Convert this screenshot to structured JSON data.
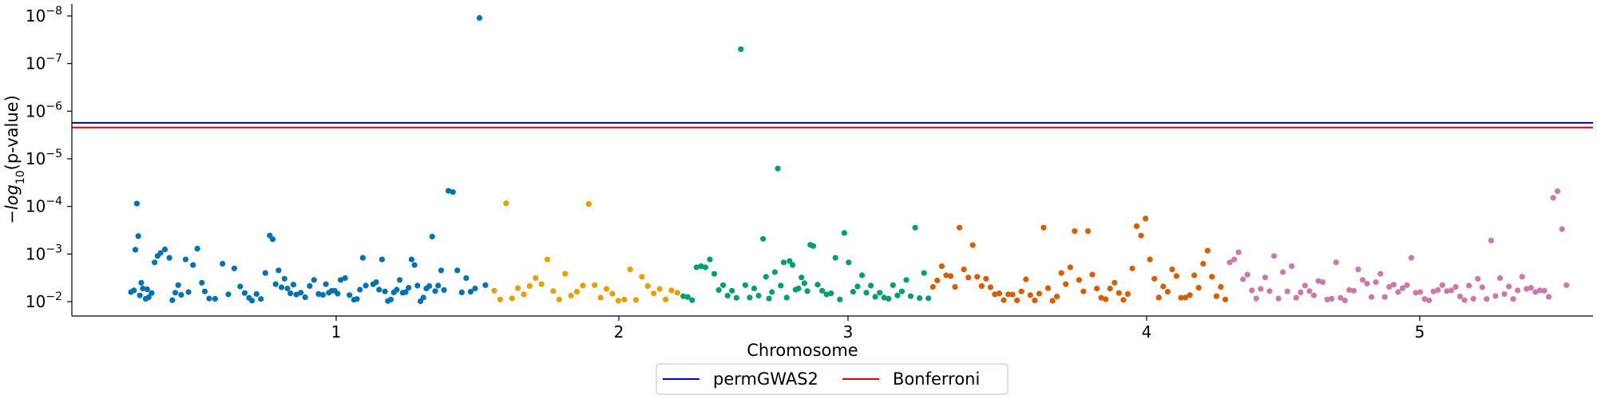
{
  "chart_data": {
    "type": "scatter",
    "xlabel": "Chromosome",
    "ylabel": "−log10(p-value)",
    "y_scale": "log (inverted)",
    "y_ticks": [
      {
        "base": "10",
        "exp": "−8",
        "value": 1e-08
      },
      {
        "base": "10",
        "exp": "−7",
        "value": 1e-07
      },
      {
        "base": "10",
        "exp": "−6",
        "value": 1e-06
      },
      {
        "base": "10",
        "exp": "−5",
        "value": 1e-05
      },
      {
        "base": "10",
        "exp": "−4",
        "value": 0.0001
      },
      {
        "base": "10",
        "exp": "−3",
        "value": 0.001
      },
      {
        "base": "10",
        "exp": "−2",
        "value": 0.01
      }
    ],
    "x_ticks": [
      "1",
      "2",
      "3",
      "4",
      "5"
    ],
    "thresholds": [
      {
        "name": "permGWAS2",
        "value": 1.75e-06,
        "color": "#0000cc"
      },
      {
        "name": "Bonferroni",
        "value": 2.2e-06,
        "color": "#dd0000"
      }
    ],
    "legend": {
      "placement": "bottom-center",
      "entries": [
        "permGWAS2",
        "Bonferroni"
      ]
    },
    "grid": false,
    "series": [
      {
        "chromosome": "1",
        "color": "#0072b2",
        "x": [
          0.4,
          0.42,
          0.43,
          0.44,
          0.45,
          0.46,
          0.47,
          0.48,
          0.5,
          0.51,
          0.52,
          0.54,
          0.56,
          0.58,
          0.6,
          0.63,
          0.66,
          0.68,
          0.7,
          0.72,
          0.74,
          0.77,
          0.79,
          0.82,
          0.85,
          0.88,
          0.9,
          0.93,
          0.97,
          1.02,
          1.06,
          1.1,
          1.14,
          1.17,
          1.2,
          1.22,
          1.25,
          1.28,
          1.31,
          1.34,
          1.36,
          1.38,
          1.4,
          1.42,
          1.44,
          1.46,
          1.48,
          1.5,
          1.52,
          1.55,
          1.58,
          1.61,
          1.64,
          1.67,
          1.7,
          1.72,
          1.74,
          1.76,
          1.78,
          1.8,
          1.82,
          1.85,
          1.88,
          1.91,
          1.93,
          1.95,
          1.97,
          1.99
        ],
        "y": [
          0.0063,
          0.0058,
          0.00081,
          8.7e-05,
          0.00042,
          0.0074,
          0.004,
          0.0053,
          0.0087,
          0.0055,
          0.0081,
          0.0066,
          0.0015,
          0.0011,
          0.00095,
          0.0008,
          0.0012,
          0.0093,
          0.0065,
          0.0045,
          0.0072,
          0.0013,
          0.0063,
          0.0017,
          0.00077,
          0.004,
          0.0061,
          0.0086,
          0.0087,
          0.0016,
          0.007,
          0.002,
          0.0048,
          0.0066,
          0.0083,
          0.0095,
          0.0069,
          0.0088,
          0.0025,
          0.00041,
          0.00049,
          0.0043,
          0.0022,
          0.005,
          0.0033,
          0.0053,
          0.0067,
          0.0044,
          0.0071,
          0.0065,
          0.0081,
          0.0047,
          0.0035,
          0.0069,
          0.0072,
          0.0043,
          0.0065,
          0.0059,
          0.0059,
          0.0068,
          0.0035,
          0.0032,
          0.0073,
          0.0091,
          0.0088,
          0.0056,
          0.0012,
          0.0046
        ]
      },
      {
        "chromosome": "1",
        "color": "#0072b2",
        "x": [
          2.04,
          2.06,
          2.08,
          2.1,
          2.12,
          2.14,
          2.16,
          2.18,
          2.2,
          2.22,
          2.24,
          2.26,
          2.28,
          2.3,
          2.32,
          2.34,
          2.36,
          2.38,
          2.4,
          2.42,
          2.44,
          2.46,
          2.48,
          2.5,
          2.52,
          2.55,
          2.58,
          2.61,
          2.64,
          2.67,
          2.7,
          2.73,
          2.76,
          2.8
        ],
        "y": [
          0.0043,
          0.0039,
          0.0056,
          0.0013,
          0.0061,
          0.0097,
          0.009,
          0.0064,
          0.0056,
          0.0035,
          0.0065,
          0.0063,
          0.0051,
          0.0013,
          0.0017,
          0.0046,
          0.0098,
          0.0082,
          0.0053,
          0.0047,
          0.00043,
          0.006,
          0.0046,
          0.0022,
          0.0057,
          4.7e-05,
          5e-05,
          0.0022,
          0.0064,
          0.0032,
          0.0062,
          0.0053,
          1.1e-08,
          0.0045
        ]
      },
      {
        "chromosome": "2",
        "color": "#e69f00",
        "x": [
          2.86,
          2.9,
          2.94,
          2.98,
          3.02,
          3.06,
          3.1,
          3.14,
          3.18,
          3.22,
          3.26,
          3.3,
          3.34,
          3.38,
          3.42,
          3.46,
          3.5,
          3.54,
          3.58,
          3.62,
          3.66,
          3.7,
          3.74,
          3.78,
          3.82,
          3.86,
          3.9,
          3.94,
          3.98,
          4.02,
          4.06,
          4.1
        ],
        "y": [
          0.0059,
          0.009,
          8.6e-05,
          0.0085,
          0.0052,
          0.007,
          0.0047,
          0.0032,
          0.0043,
          0.0013,
          0.006,
          0.009,
          0.0026,
          0.0075,
          0.0062,
          0.0046,
          8.9e-05,
          0.0045,
          0.0082,
          0.0054,
          0.0068,
          0.0096,
          0.009,
          0.0021,
          0.0092,
          0.003,
          0.0047,
          0.0067,
          0.0054,
          0.009,
          0.0058,
          0.0065
        ]
      },
      {
        "chromosome": "3",
        "color": "#009e73",
        "x": [
          4.14,
          4.17,
          4.2,
          4.23,
          4.26,
          4.29,
          4.32,
          4.35,
          4.38,
          4.41,
          4.44,
          4.47,
          4.5,
          4.53,
          4.56,
          4.59,
          4.62,
          4.65,
          4.68,
          4.7,
          4.72,
          4.74,
          4.76,
          4.78,
          4.8,
          4.82,
          4.84,
          4.86,
          4.88,
          4.9,
          4.92,
          4.94,
          4.96,
          4.98,
          5.0,
          5.02,
          5.05,
          5.08,
          5.11,
          5.14,
          5.17,
          5.2,
          5.23,
          5.26,
          5.29,
          5.32,
          5.35,
          5.38,
          5.41,
          5.44,
          5.47,
          5.5,
          5.53
        ],
        "y": [
          0.0077,
          0.008,
          0.0093,
          0.0019,
          0.0018,
          0.0019,
          0.0013,
          0.0026,
          0.0057,
          0.0045,
          0.0075,
          0.0059,
          0.0083,
          5e-08,
          0.0045,
          0.0082,
          0.0053,
          0.0075,
          0.00048,
          0.003,
          0.0086,
          0.0063,
          0.0024,
          1.6e-05,
          0.0046,
          0.0015,
          0.0082,
          0.0014,
          0.0017,
          0.0056,
          0.0053,
          0.0031,
          0.0041,
          0.006,
          0.00064,
          0.00068,
          0.0044,
          0.0059,
          0.007,
          0.0067,
          0.0012,
          0.009,
          0.00036,
          0.0015,
          0.0062,
          0.0048,
          0.0028,
          0.0065,
          0.0046,
          0.0079,
          0.0065,
          0.0082,
          0.0087
        ]
      },
      {
        "chromosome": "3",
        "color": "#009e73",
        "x": [
          5.56,
          5.59,
          5.62,
          5.65,
          5.68,
          5.71,
          5.74,
          5.77,
          5.8
        ],
        "y": [
          0.0045,
          0.0074,
          0.0061,
          0.0035,
          0.0077,
          0.00028,
          0.0084,
          0.0025,
          0.0085
        ]
      },
      {
        "chromosome": "4",
        "color": "#d55e00",
        "x": [
          5.83,
          5.86,
          5.89,
          5.92,
          5.95,
          5.98,
          6.01,
          6.04,
          6.07,
          6.1,
          6.13,
          6.16,
          6.19,
          6.22,
          6.25,
          6.28,
          6.31,
          6.34,
          6.37,
          6.4,
          6.43,
          6.46,
          6.49,
          6.52,
          6.55,
          6.58,
          6.61,
          6.64,
          6.67,
          6.7,
          6.73,
          6.76,
          6.79,
          6.82,
          6.85,
          6.88,
          6.91,
          6.94,
          6.97,
          7.0,
          7.03,
          7.06,
          7.09,
          7.12,
          7.15,
          7.18,
          7.21,
          7.24,
          7.27,
          7.3,
          7.33,
          7.36,
          7.39,
          7.42,
          7.45,
          7.48,
          7.51,
          7.54,
          7.57,
          7.6,
          7.63,
          7.66,
          7.69,
          7.72,
          7.75,
          7.78,
          7.81
        ],
        "y": [
          0.0049,
          0.0036,
          0.0018,
          0.0028,
          0.0029,
          0.0049,
          0.00028,
          0.0021,
          0.0031,
          0.00065,
          0.003,
          0.0047,
          0.0033,
          0.005,
          0.007,
          0.0067,
          0.0093,
          0.007,
          0.0071,
          0.0094,
          0.0061,
          0.0034,
          0.0073,
          0.0094,
          0.0068,
          0.00028,
          0.0052,
          0.0096,
          0.0078,
          0.0025,
          0.0043,
          0.0019,
          0.00033,
          0.0035,
          0.0061,
          0.00033,
          0.0027,
          0.0053,
          0.0083,
          0.0089,
          0.0053,
          0.004,
          0.0066,
          0.0092,
          0.0069,
          0.002,
          0.00026,
          0.00041,
          0.00018,
          0.0013,
          0.0033,
          0.0082,
          0.0048,
          0.0062,
          0.0021,
          0.0029,
          0.0083,
          0.0082,
          0.0073,
          0.0028,
          0.0051,
          0.0016,
          0.00085,
          0.003,
          0.0077,
          0.0049,
          0.009
        ]
      },
      {
        "chromosome": "5",
        "color": "#cc79a7",
        "x": [
          7.84,
          7.87,
          7.9,
          7.93,
          7.96,
          7.99,
          8.02,
          8.05,
          8.08,
          8.11,
          8.14,
          8.17,
          8.2,
          8.23,
          8.26,
          8.29,
          8.32,
          8.35,
          8.38,
          8.41,
          8.44,
          8.47,
          8.5,
          8.53,
          8.56,
          8.59,
          8.62,
          8.65,
          8.68,
          8.71,
          8.74,
          8.77,
          8.8,
          8.83,
          8.86,
          8.89,
          8.92,
          8.95,
          8.98,
          9.01,
          9.04,
          9.07,
          9.1,
          9.13,
          9.16,
          9.19,
          9.22,
          9.25,
          9.28,
          9.31,
          9.34,
          9.37,
          9.4,
          9.43,
          9.46,
          9.49,
          9.52,
          9.55,
          9.58,
          9.61,
          9.64,
          9.67,
          9.7,
          9.73,
          9.76,
          9.79,
          9.82,
          9.85,
          9.88,
          9.91,
          9.94,
          9.97,
          10.0,
          10.03,
          10.06,
          10.09,
          10.12
        ],
        "y": [
          0.0015,
          0.0013,
          0.00092,
          0.0034,
          0.0027,
          0.0058,
          0.0086,
          0.0054,
          0.0031,
          0.006,
          0.0011,
          0.0086,
          0.0024,
          0.0061,
          0.0018,
          0.0083,
          0.0064,
          0.0046,
          0.006,
          0.0074,
          0.0037,
          0.0039,
          0.009,
          0.0087,
          0.0015,
          0.0083,
          0.0094,
          0.0057,
          0.0059,
          0.0021,
          0.0035,
          0.0042,
          0.008,
          0.0039,
          0.0026,
          0.008,
          0.0049,
          0.0044,
          0.0063,
          0.0052,
          0.0045,
          0.0012,
          0.0065,
          0.0063,
          0.0088,
          0.0094,
          0.0061,
          0.0057,
          0.0045,
          0.006,
          0.0058,
          0.0049,
          0.0078,
          0.0093,
          0.0046,
          0.0087,
          0.0033,
          0.005,
          0.0088,
          0.00052,
          0.0076,
          0.0032,
          0.0069,
          0.0048,
          0.0088,
          0.0058,
          0.003,
          0.0054,
          0.0051,
          0.0063,
          0.0058,
          0.0059,
          0.0079,
          6.6e-05,
          4.8e-05,
          0.0003,
          0.0045
        ]
      }
    ]
  }
}
